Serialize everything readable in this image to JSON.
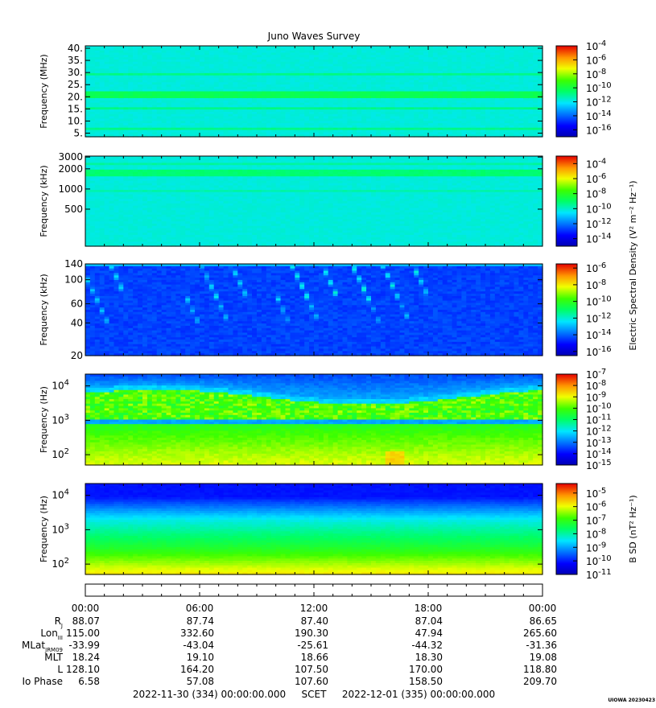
{
  "title": "Juno Waves Survey",
  "footer": {
    "start": "2022-11-30 (334) 00:00:00.000",
    "scet": "SCET",
    "end": "2022-12-01 (335) 00:00:00.000",
    "stamp": "UIOWA 20230423"
  },
  "chart_data": [
    {
      "type": "heatmap",
      "panel": 1,
      "ylabel": "Frequency (MHz)",
      "yscale": "linear",
      "ylim": [
        3.5,
        41
      ],
      "yticks": [
        5,
        10,
        15,
        20,
        25,
        30,
        35,
        40
      ],
      "ytick_labels": [
        "5.",
        "10.",
        "15.",
        "20.",
        "25.",
        "30.",
        "35.",
        "40."
      ],
      "colorbar": {
        "scale": "log",
        "range": [
          -17,
          -4
        ],
        "tick_exponents": [
          -4,
          -6,
          -8,
          -10,
          -12,
          -14,
          -16
        ],
        "label": ""
      }
    },
    {
      "type": "heatmap",
      "panel": 2,
      "ylabel": "Frequency (kHz)",
      "yscale": "log",
      "ylim": [
        140,
        3100
      ],
      "yticks": [
        500,
        1000,
        2000,
        3000
      ],
      "ytick_labels": [
        "500",
        "1000",
        "2000",
        "3000"
      ],
      "colorbar": {
        "scale": "log",
        "range": [
          -15,
          -3
        ],
        "tick_exponents": [
          -4,
          -6,
          -8,
          -10,
          -12,
          -14
        ],
        "label": "Electric Spectral Density (V² m⁻² Hz⁻¹)"
      }
    },
    {
      "type": "heatmap",
      "panel": 3,
      "ylabel": "Frequency (kHz)",
      "yscale": "log",
      "ylim": [
        20,
        140
      ],
      "yticks": [
        20,
        40,
        60,
        100,
        140
      ],
      "ytick_labels": [
        "20",
        "40",
        "60",
        "100",
        "140"
      ],
      "colorbar": {
        "scale": "log",
        "range": [
          -16.5,
          -5.5
        ],
        "tick_exponents": [
          -6,
          -8,
          -10,
          -12,
          -14,
          -16
        ],
        "label": ""
      }
    },
    {
      "type": "heatmap",
      "panel": 4,
      "ylabel": "Frequency (Hz)",
      "yscale": "log",
      "ylim": [
        50,
        22000
      ],
      "yticks": [
        100,
        1000,
        10000
      ],
      "ytick_exponents": [
        2,
        3,
        4
      ],
      "colorbar": {
        "scale": "log",
        "range": [
          -15,
          -7
        ],
        "tick_exponents": [
          -7,
          -8,
          -9,
          -10,
          -11,
          -12,
          -13,
          -14,
          -15
        ],
        "label": ""
      }
    },
    {
      "type": "heatmap",
      "panel": 5,
      "ylabel": "Frequency (Hz)",
      "yscale": "log",
      "ylim": [
        50,
        22000
      ],
      "yticks": [
        100,
        1000,
        10000
      ],
      "ytick_exponents": [
        2,
        3,
        4
      ],
      "colorbar": {
        "scale": "log",
        "range": [
          -11,
          -4.3
        ],
        "tick_exponents": [
          -5,
          -6,
          -7,
          -8,
          -9,
          -10,
          -11
        ],
        "label": "B SD (nT² Hz⁻¹)"
      }
    }
  ],
  "time_axis": {
    "range_hours": [
      0,
      24
    ],
    "ticks": [
      0,
      6,
      12,
      18,
      24
    ],
    "tick_labels": [
      "00:00",
      "06:00",
      "12:00",
      "18:00",
      "00:00"
    ]
  },
  "ephemeris": [
    {
      "label": "R",
      "sub": "J",
      "values": [
        "88.07",
        "87.74",
        "87.40",
        "87.04",
        "86.65"
      ]
    },
    {
      "label": "Lon",
      "sub": "III",
      "values": [
        "115.00",
        "332.60",
        "190.30",
        "47.94",
        "265.60"
      ]
    },
    {
      "label": "MLat",
      "sub": "JRM09",
      "values": [
        "-33.99",
        "-43.04",
        "-25.61",
        "-44.32",
        "-31.36"
      ]
    },
    {
      "label": "MLT",
      "sub": "",
      "values": [
        "18.24",
        "19.10",
        "18.66",
        "18.30",
        "19.08"
      ]
    },
    {
      "label": "L",
      "sub": "",
      "values": [
        "128.10",
        "164.20",
        "107.50",
        "170.00",
        "118.80"
      ]
    },
    {
      "label": "Io Phase",
      "sub": "",
      "values": [
        "6.58",
        "57.08",
        "107.60",
        "158.50",
        "209.70"
      ]
    }
  ]
}
